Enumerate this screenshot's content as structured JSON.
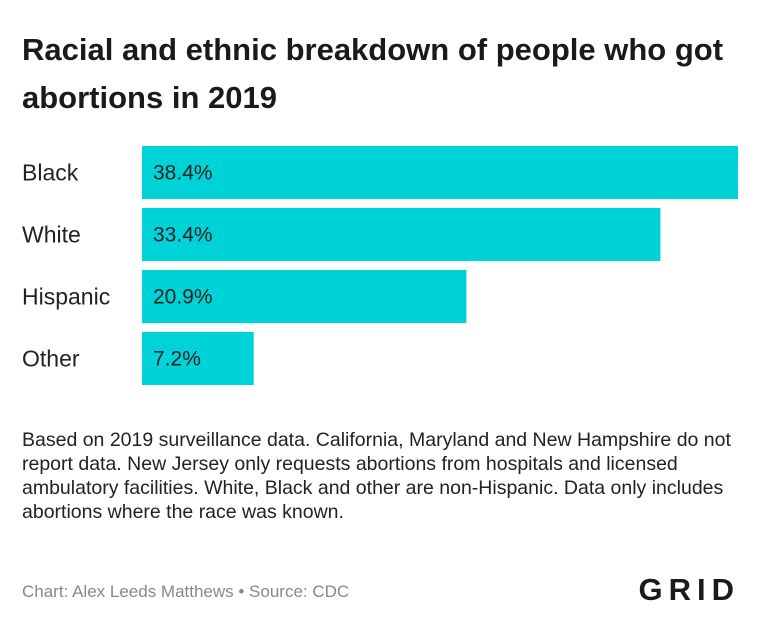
{
  "chart_data": {
    "type": "bar",
    "orientation": "horizontal",
    "title": "Racial and ethnic breakdown of people who got abortions in 2019",
    "categories": [
      "Black",
      "White",
      "Hispanic",
      "Other"
    ],
    "values": [
      38.4,
      33.4,
      20.9,
      7.2
    ],
    "value_labels": [
      "38.4%",
      "33.4%",
      "20.9%",
      "7.2%"
    ],
    "unit": "%",
    "xlim": [
      0,
      38.4
    ],
    "grid": false,
    "legend": "none",
    "bar_color": "#00d3d8"
  },
  "note": "Based on 2019 surveillance data. California, Maryland and New Hampshire do not report data. New Jersey only requests abortions from hospitals and licensed ambulatory facilities. White, Black and other are non-Hispanic. Data only includes abortions where the race was known.",
  "credit": "Chart: Alex Leeds Matthews • Source: CDC",
  "logo": "GRID"
}
